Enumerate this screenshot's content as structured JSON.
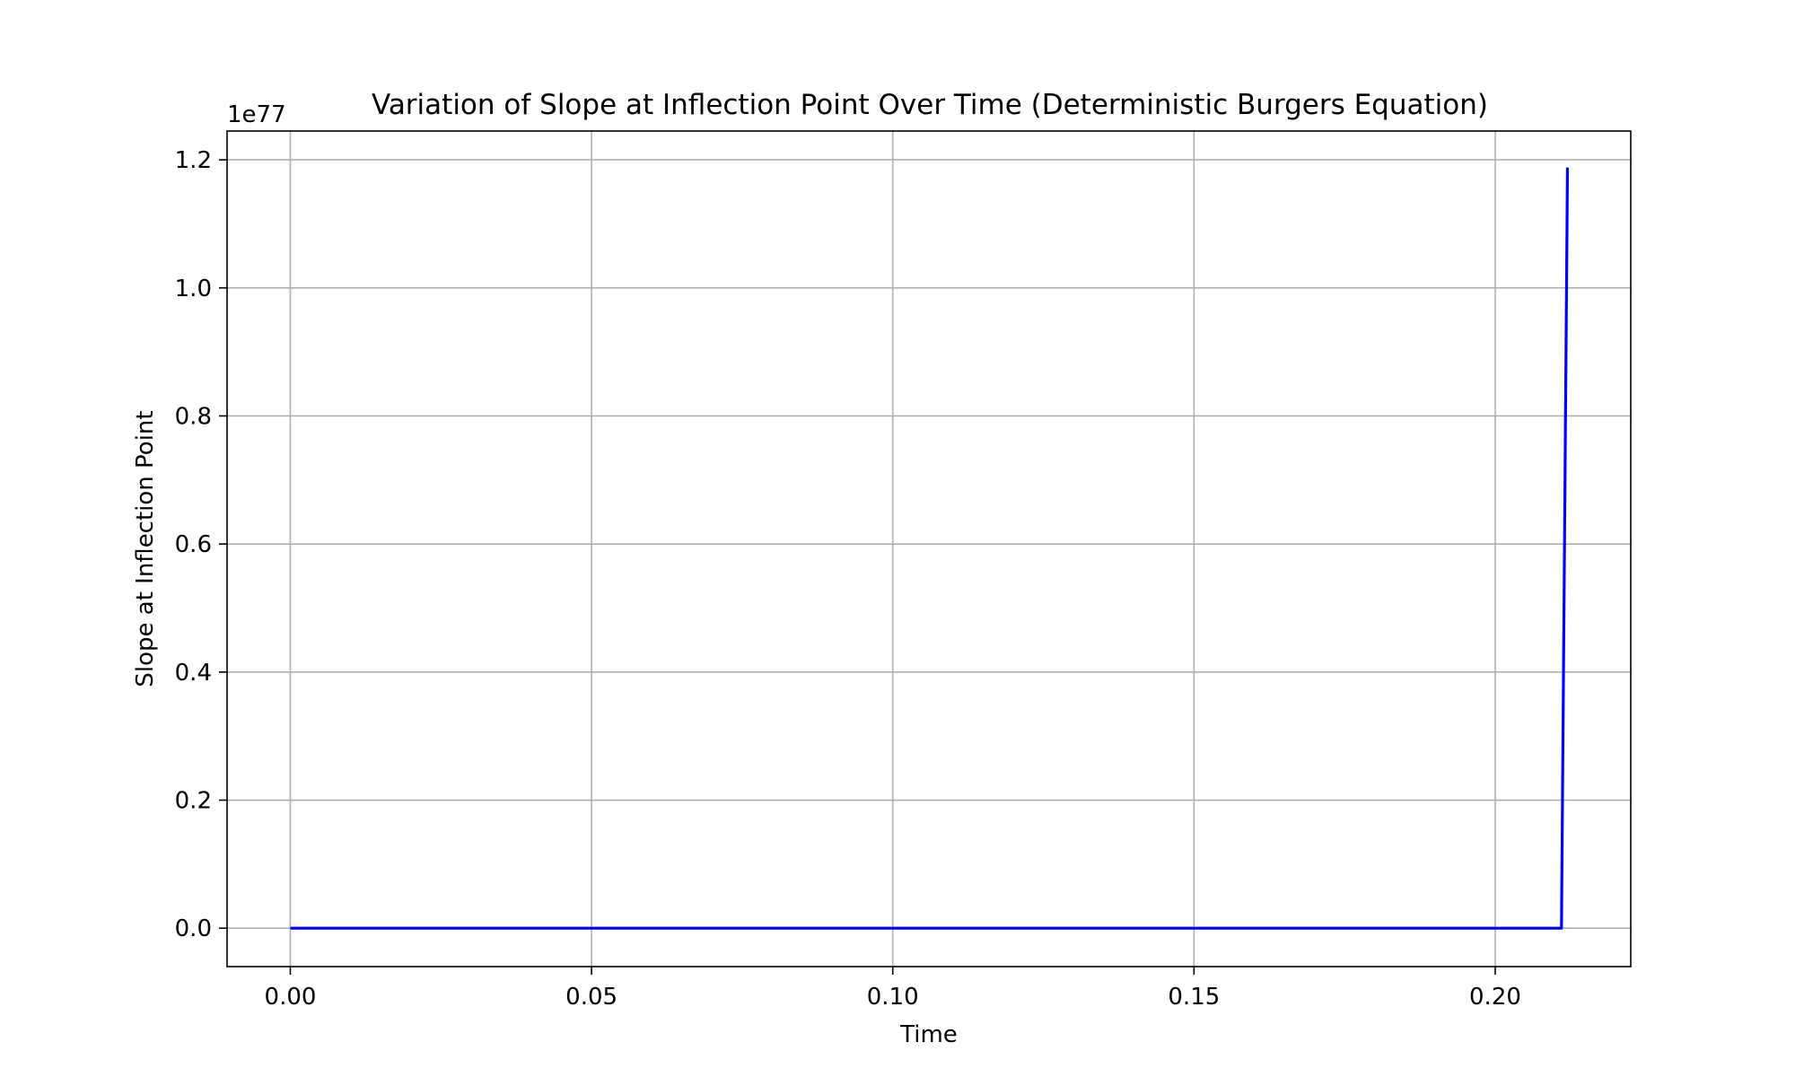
{
  "chart_data": {
    "type": "line",
    "title": "Variation of Slope at Inflection Point Over Time (Deterministic Burgers Equation)",
    "xlabel": "Time",
    "ylabel": "Slope at Inflection Point",
    "y_offset_label": "1e77",
    "y_scale_exponent": 77,
    "xlim": [
      -0.0105,
      0.2225
    ],
    "ylim": [
      -0.06,
      1.245
    ],
    "x_ticks": [
      0.0,
      0.05,
      0.1,
      0.15,
      0.2
    ],
    "x_tick_labels": [
      "0.00",
      "0.05",
      "0.10",
      "0.15",
      "0.20"
    ],
    "y_ticks": [
      0.0,
      0.2,
      0.4,
      0.6,
      0.8,
      1.0,
      1.2
    ],
    "y_tick_labels": [
      "0.0",
      "0.2",
      "0.4",
      "0.6",
      "0.8",
      "1.0",
      "1.2"
    ],
    "grid": true,
    "series": [
      {
        "color": "#0000ff",
        "x": [
          0.0,
          0.05,
          0.1,
          0.15,
          0.2,
          0.211,
          0.212
        ],
        "y": [
          0.0,
          0.0,
          0.0,
          0.0,
          0.0,
          0.0,
          1.188
        ]
      }
    ]
  }
}
